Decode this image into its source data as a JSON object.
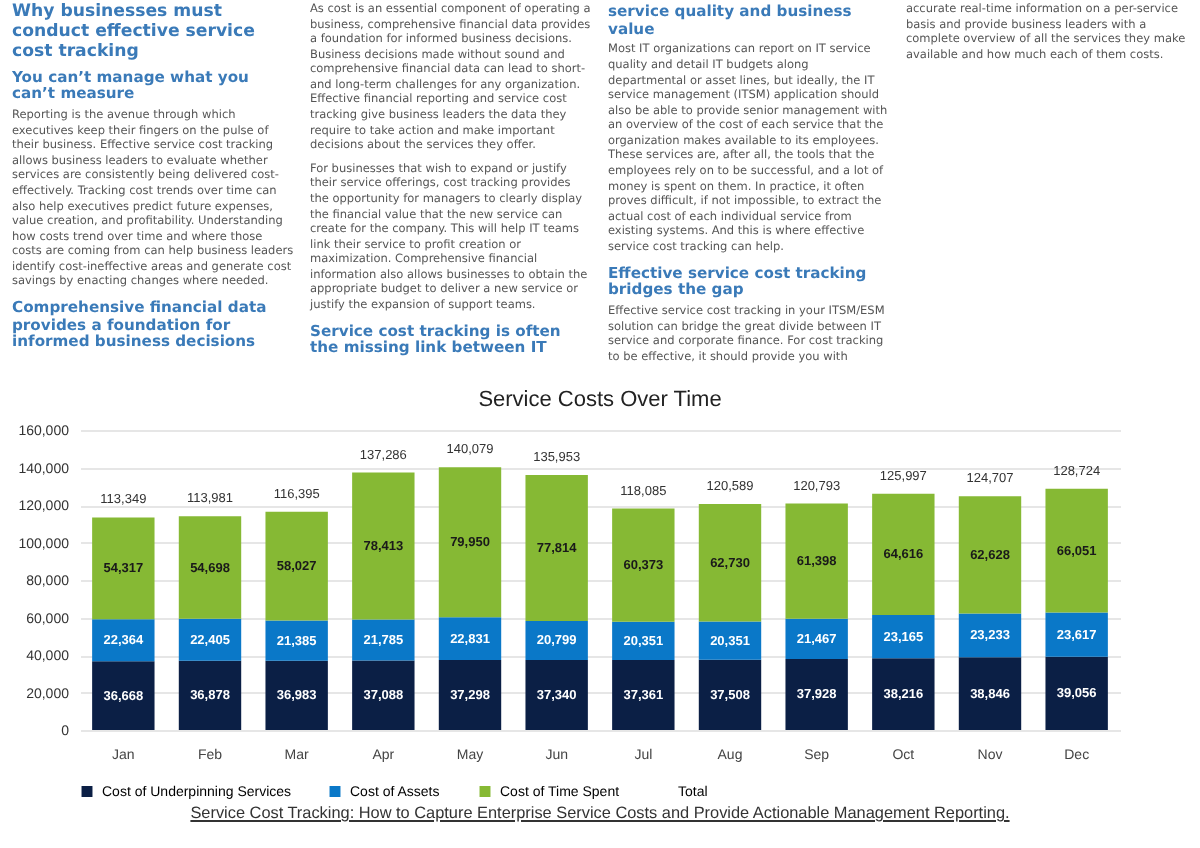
{
  "chart_data": {
    "type": "bar",
    "title": "Service Costs Over Time",
    "stacked": true,
    "grid": "y",
    "legend": "bottom",
    "categories": [
      "Jan",
      "Feb",
      "Mar",
      "Apr",
      "May",
      "Jun",
      "Jul",
      "Aug",
      "Sep",
      "Oct",
      "Nov",
      "Dec"
    ],
    "series": [
      {
        "name": "Cost of Underpinning Services",
        "color": "#0b1f45",
        "values": [
          36668,
          36878,
          36983,
          37088,
          37298,
          37340,
          37361,
          37508,
          37928,
          38216,
          38846,
          39056
        ],
        "value_labels": [
          "36,668",
          "36,878",
          "36,983",
          "37,088",
          "37,298",
          "37,340",
          "37,361",
          "37,508",
          "37,928",
          "38,216",
          "38,846",
          "39,056"
        ]
      },
      {
        "name": "Cost of Assets",
        "color": "#0a78c8",
        "values": [
          22364,
          22405,
          21385,
          21785,
          22831,
          20799,
          20351,
          20351,
          21467,
          23165,
          23233,
          23617
        ],
        "value_labels": [
          "22,364",
          "22,405",
          "21,385",
          "21,785",
          "22,831",
          "20,799",
          "20,351",
          "20,351",
          "21,467",
          "23,165",
          "23,233",
          "23,617"
        ]
      },
      {
        "name": "Cost of Time Spent",
        "color": "#86b934",
        "values": [
          54317,
          54698,
          58027,
          78413,
          79950,
          77814,
          60373,
          62730,
          61398,
          64616,
          62628,
          66051
        ],
        "value_labels": [
          "54,317",
          "54,698",
          "58,027",
          "78,413",
          "79,950",
          "77,814",
          "60,373",
          "62,730",
          "61,398",
          "64,616",
          "62,628",
          "66,051"
        ]
      }
    ],
    "totals": [
      "113,349",
      "113,981",
      "116,395",
      "137,286",
      "140,079",
      "135,953",
      "118,085",
      "120,589",
      "120,793",
      "125,997",
      "124,707",
      "128,724"
    ],
    "ylim": [
      0,
      160000
    ],
    "yticks": [
      0,
      {
        "value": 20000,
        "label": "20,000"
      },
      {
        "value": 40000,
        "label": "40,000"
      },
      {
        "value": 60000,
        "label": "60,000"
      },
      {
        "value": 80000,
        "label": "80,000"
      },
      {
        "value": 100000,
        "label": "100,000"
      },
      {
        "value": 120000,
        "label": "120,000"
      },
      {
        "value": 140000,
        "label": "140,000"
      },
      {
        "value": 160000,
        "label": "160,000"
      }
    ],
    "annotations": [
      "Why businesses must conduct effective service cost tracking",
      "You can’t manage what you can’t measure",
      "Reporting is the avenue through which executives keep their fingers on the pulse of their business. Effective service cost tracking allows business leaders to evaluate whether services are consistently being delivered cost-effectively. Tracking cost trends over time can also help executives predict future expenses, value creation, and profitability. Understanding how costs trend over time and where those costs are coming from can help business leaders identify cost-ineffective areas and generate cost savings by enacting changes where needed.",
      "Comprehensive financial data provides a foundation for informed business decisions",
      "As cost is an essential component of operating a business, comprehensive financial data provides a foundation for informed business decisions. Business decisions made without sound and comprehensive financial data can lead to short- and long-term challenges for any organization. Effective financial reporting and service cost tracking give business leaders the data they require to take action and make important decisions about the services they offer.",
      "For businesses that wish to expand or justify their service offerings, cost tracking provides the opportunity for managers to clearly display the financial value that the new service can create for the company. This will help IT teams link their service to profit creation or maximization. Comprehensive financial information also allows businesses to obtain the appropriate budget to deliver a new service or justify the expansion of support teams.",
      "Service cost tracking is often the missing link between IT service quality and business value",
      "Most IT organizations can report on IT service quality and detail IT budgets along departmental or asset lines, but ideally, the IT service management (ITSM) application should also be able to provide senior management with an overview of the cost of each service that the organization makes available to its employees. These services are, after all, the tools that the employees rely on to be successful, and a lot of money is spent on them. In practice, it often proves difficult, if not impossible, to extract the actual cost of each individual service from existing systems. And this is where effective service cost tracking can help.",
      "Effective service cost tracking bridges the gap",
      "Effective service cost tracking in your ITSM/ESM solution can bridge the great divide between IT service and corporate finance. For cost tracking to be effective, it should provide you with accurate real-time information on a per-service basis and provide business leaders with a complete overview of all the services they make available and how much each of them costs.",
      "Service Cost Tracking: How to Capture Enterprise Service Costs and Provide Actionable Management Reporting.",
      "Total"
    ]
  }
}
